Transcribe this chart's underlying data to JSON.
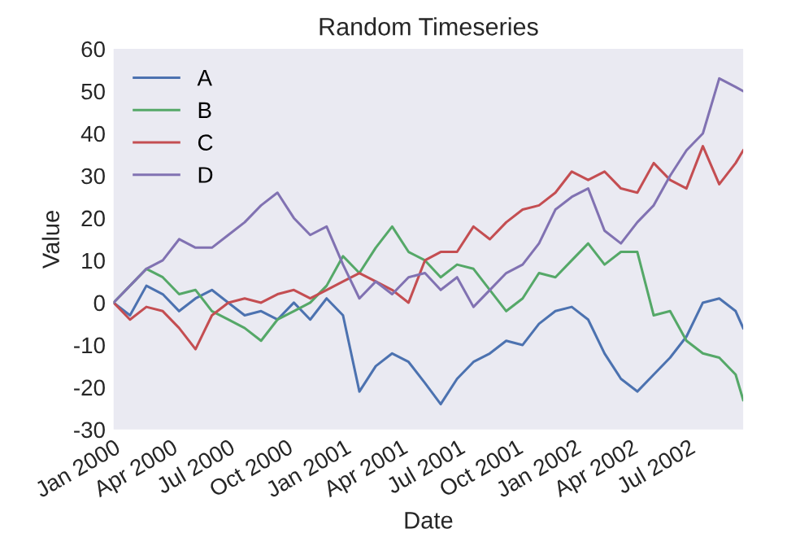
{
  "chart_data": {
    "type": "line",
    "title": "Random Timeseries",
    "xlabel": "Date",
    "ylabel": "Value",
    "x": [
      "2000-01-01",
      "2000-01-27",
      "2000-02-22",
      "2000-03-19",
      "2000-04-14",
      "2000-05-10",
      "2000-06-05",
      "2000-07-01",
      "2000-07-27",
      "2000-08-22",
      "2000-09-17",
      "2000-10-13",
      "2000-11-08",
      "2000-12-04",
      "2000-12-30",
      "2001-01-25",
      "2001-02-20",
      "2001-03-18",
      "2001-04-13",
      "2001-05-09",
      "2001-06-03",
      "2001-06-29",
      "2001-07-25",
      "2001-08-20",
      "2001-09-15",
      "2001-10-11",
      "2001-11-06",
      "2001-12-02",
      "2001-12-28",
      "2002-01-23",
      "2002-02-18",
      "2002-03-16",
      "2002-04-11",
      "2002-05-07",
      "2002-06-02",
      "2002-06-28",
      "2002-07-24",
      "2002-08-19",
      "2002-09-14",
      "2002-09-26"
    ],
    "series": [
      {
        "name": "A",
        "color": "#4c72b0",
        "values": [
          0,
          -3,
          4,
          2,
          -2,
          1,
          3,
          0,
          -3,
          -2,
          -4,
          0,
          -4,
          1,
          -3,
          -21,
          -15,
          -12,
          -14,
          -19,
          -24,
          -18,
          -14,
          -12,
          -9,
          -10,
          -5,
          -2,
          -1,
          -4,
          -12,
          -18,
          -21,
          -17,
          -13,
          -8,
          0,
          1,
          -2,
          -6
        ]
      },
      {
        "name": "B",
        "color": "#55a868",
        "values": [
          0,
          4,
          8,
          6,
          2,
          3,
          -2,
          -4,
          -6,
          -9,
          -4,
          -2,
          0,
          4,
          11,
          7,
          13,
          18,
          12,
          10,
          6,
          9,
          8,
          3,
          -2,
          1,
          7,
          6,
          10,
          14,
          9,
          12,
          12,
          -3,
          -2,
          -9,
          -12,
          -13,
          -17,
          -23
        ]
      },
      {
        "name": "C",
        "color": "#c44e52",
        "values": [
          0,
          -4,
          -1,
          -2,
          -6,
          -11,
          -3,
          0,
          1,
          0,
          2,
          3,
          1,
          3,
          5,
          7,
          5,
          3,
          0,
          10,
          12,
          12,
          18,
          15,
          19,
          22,
          23,
          26,
          31,
          29,
          31,
          27,
          26,
          33,
          29,
          27,
          37,
          28,
          33,
          36
        ]
      },
      {
        "name": "D",
        "color": "#8172b2",
        "values": [
          0,
          4,
          8,
          10,
          15,
          13,
          13,
          16,
          19,
          23,
          26,
          20,
          16,
          18,
          9,
          1,
          5,
          2,
          6,
          7,
          3,
          6,
          -1,
          3,
          7,
          9,
          14,
          22,
          25,
          27,
          17,
          14,
          19,
          23,
          30,
          36,
          40,
          53,
          51,
          50
        ]
      }
    ],
    "xlim": [
      "2000-01-01",
      "2002-09-26"
    ],
    "xticks": [
      {
        "value": "2000-01-01",
        "label": "Jan 2000"
      },
      {
        "value": "2000-04-01",
        "label": "Apr 2000"
      },
      {
        "value": "2000-07-01",
        "label": "Jul 2000"
      },
      {
        "value": "2000-10-01",
        "label": "Oct 2000"
      },
      {
        "value": "2001-01-01",
        "label": "Jan 2001"
      },
      {
        "value": "2001-04-01",
        "label": "Apr 2001"
      },
      {
        "value": "2001-07-01",
        "label": "Jul 2001"
      },
      {
        "value": "2001-10-01",
        "label": "Oct 2001"
      },
      {
        "value": "2002-01-01",
        "label": "Jan 2002"
      },
      {
        "value": "2002-04-01",
        "label": "Apr 2002"
      },
      {
        "value": "2002-07-01",
        "label": "Jul 2002"
      }
    ],
    "ylim": [
      -30,
      60
    ],
    "yticks": [
      -30,
      -20,
      -10,
      0,
      10,
      20,
      30,
      40,
      50,
      60
    ],
    "grid": false,
    "legend": "top left",
    "line_style": "solid",
    "marker": "none"
  }
}
